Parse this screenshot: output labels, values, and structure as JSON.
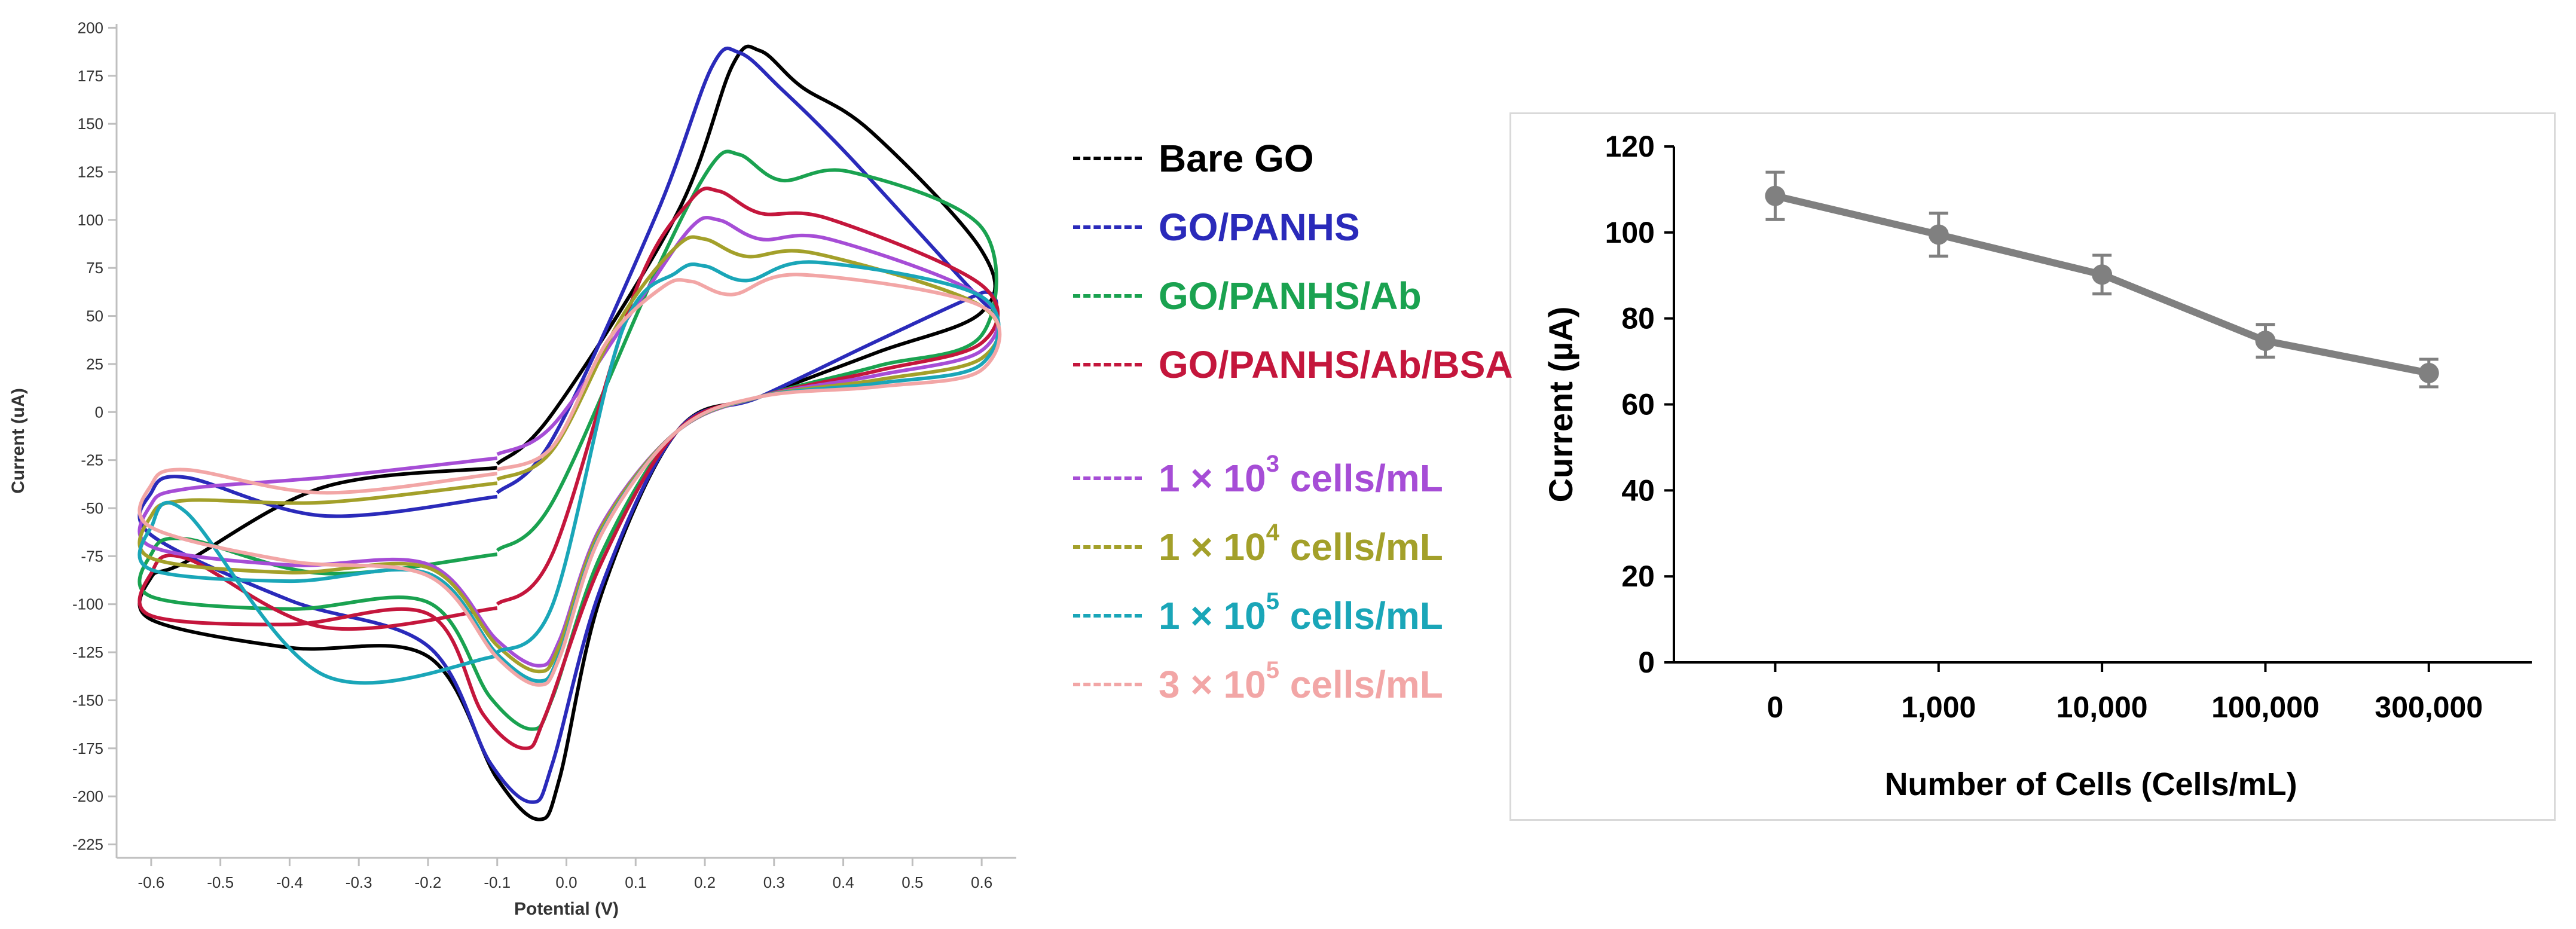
{
  "chart_data": [
    {
      "type": "line",
      "title": "",
      "xlabel": "Potential (V)",
      "ylabel": "Current (uA)",
      "xlim": [
        -0.65,
        0.65
      ],
      "ylim": [
        -232,
        202
      ],
      "xticks": [
        "-0.6",
        "-0.5",
        "-0.4",
        "-0.3",
        "-0.2",
        "-0.1",
        "0.0",
        "0.1",
        "0.2",
        "0.3",
        "0.4",
        "0.5",
        "0.6"
      ],
      "yticks": [
        "200",
        "175",
        "150",
        "125",
        "100",
        "75",
        "50",
        "25",
        "0",
        "-25",
        "-50",
        "-75",
        "-100",
        "-125",
        "-150",
        "-175",
        "-200",
        "-225"
      ],
      "grid": false,
      "legend_position": "right",
      "series": [
        {
          "name": "Bare GO",
          "color": "#000000",
          "anodic_peak": [
            0.28,
            188
          ],
          "cathodic_peak": [
            -0.04,
            -212
          ],
          "end_upper": [
            0.6,
            84
          ],
          "end_lower": [
            0.6,
            52
          ],
          "start_upper": [
            -0.1,
            -27
          ],
          "start_lower": [
            -0.6,
            -108
          ]
        },
        {
          "name": "GO/PANHS",
          "color": "#2a2aba",
          "anodic_peak": [
            0.25,
            187
          ],
          "cathodic_peak": [
            -0.05,
            -203
          ],
          "end_upper": [
            0.6,
            58
          ],
          "end_lower": [
            0.6,
            62
          ],
          "start_upper": [
            -0.1,
            -42
          ],
          "start_lower": [
            -0.6,
            -64
          ]
        },
        {
          "name": "GO/PANHS/Ab",
          "color": "#1aa250",
          "anodic_peak": [
            0.25,
            134
          ],
          "cathodic_peak": [
            -0.05,
            -165
          ],
          "end_upper": [
            0.6,
            96
          ],
          "end_lower": [
            0.6,
            40
          ],
          "start_upper": [
            -0.1,
            -72
          ],
          "start_lower": [
            -0.6,
            -96
          ]
        },
        {
          "name": "GO/PANHS/Ab/BSA",
          "color": "#c4163c",
          "anodic_peak": [
            0.22,
            115
          ],
          "cathodic_peak": [
            -0.06,
            -175
          ],
          "end_upper": [
            0.6,
            66
          ],
          "end_lower": [
            0.6,
            36
          ],
          "start_upper": [
            -0.1,
            -100
          ],
          "start_lower": [
            -0.6,
            -106
          ]
        },
        {
          "name": "1 × 10^3 cells/mL",
          "color": "#a64dd6",
          "anodic_peak": [
            0.22,
            100
          ],
          "cathodic_peak": [
            -0.04,
            -132
          ],
          "end_upper": [
            0.6,
            60
          ],
          "end_lower": [
            0.6,
            32
          ],
          "start_upper": [
            -0.1,
            -22
          ],
          "start_lower": [
            -0.6,
            -70
          ]
        },
        {
          "name": "1 × 10^4 cells/mL",
          "color": "#a3a02a",
          "anodic_peak": [
            0.2,
            90
          ],
          "cathodic_peak": [
            -0.04,
            -135
          ],
          "end_upper": [
            0.6,
            55
          ],
          "end_lower": [
            0.6,
            28
          ],
          "start_upper": [
            -0.1,
            -35
          ],
          "start_lower": [
            -0.6,
            -76
          ]
        },
        {
          "name": "1 × 10^5 cells/mL",
          "color": "#1aa6b8",
          "anodic_peak": [
            0.2,
            76
          ],
          "cathodic_peak": [
            -0.04,
            -140
          ],
          "end_upper": [
            0.6,
            60
          ],
          "end_lower": [
            0.6,
            25
          ],
          "start_upper": [
            -0.1,
            -125
          ],
          "start_lower": [
            -0.6,
            -82
          ]
        },
        {
          "name": "3 × 10^5 cells/mL",
          "color": "#f2a6a6",
          "anodic_peak": [
            0.18,
            68
          ],
          "cathodic_peak": [
            -0.04,
            -142
          ],
          "end_upper": [
            0.6,
            55
          ],
          "end_lower": [
            0.6,
            22
          ],
          "start_upper": [
            -0.1,
            -30
          ],
          "start_lower": [
            -0.6,
            -60
          ]
        }
      ]
    },
    {
      "type": "line",
      "title": "",
      "xlabel": "Number of Cells (Cells/mL)",
      "ylabel": "Current (µA)",
      "ylim": [
        0,
        120
      ],
      "yticks": [
        0,
        20,
        40,
        60,
        80,
        100,
        120
      ],
      "categories": [
        "0",
        "1,000",
        "10,000",
        "100,000",
        "300,000"
      ],
      "values": [
        108.5,
        99.5,
        90.2,
        74.8,
        67.3
      ],
      "errors": [
        5.5,
        5.0,
        4.5,
        3.8,
        3.2
      ],
      "color": "#808080",
      "grid": false
    }
  ],
  "legend": {
    "items": [
      {
        "pre": "Bare GO",
        "sup": "",
        "post": "",
        "color": "#000000"
      },
      {
        "pre": "GO/PANHS",
        "sup": "",
        "post": "",
        "color": "#2a2aba"
      },
      {
        "pre": "GO/PANHS/Ab",
        "sup": "",
        "post": "",
        "color": "#1aa250"
      },
      {
        "pre": "GO/PANHS/Ab/BSA",
        "sup": "",
        "post": "",
        "color": "#c4163c"
      },
      {
        "pre": "1 × 10",
        "sup": "3",
        "post": " cells/mL",
        "color": "#a64dd6"
      },
      {
        "pre": "1 × 10",
        "sup": "4",
        "post": " cells/mL",
        "color": "#a3a02a"
      },
      {
        "pre": "1 × 10",
        "sup": "5",
        "post": " cells/mL",
        "color": "#1aa6b8"
      },
      {
        "pre": "3 × 10",
        "sup": "5",
        "post": " cells/mL",
        "color": "#f2a6a6"
      }
    ]
  }
}
